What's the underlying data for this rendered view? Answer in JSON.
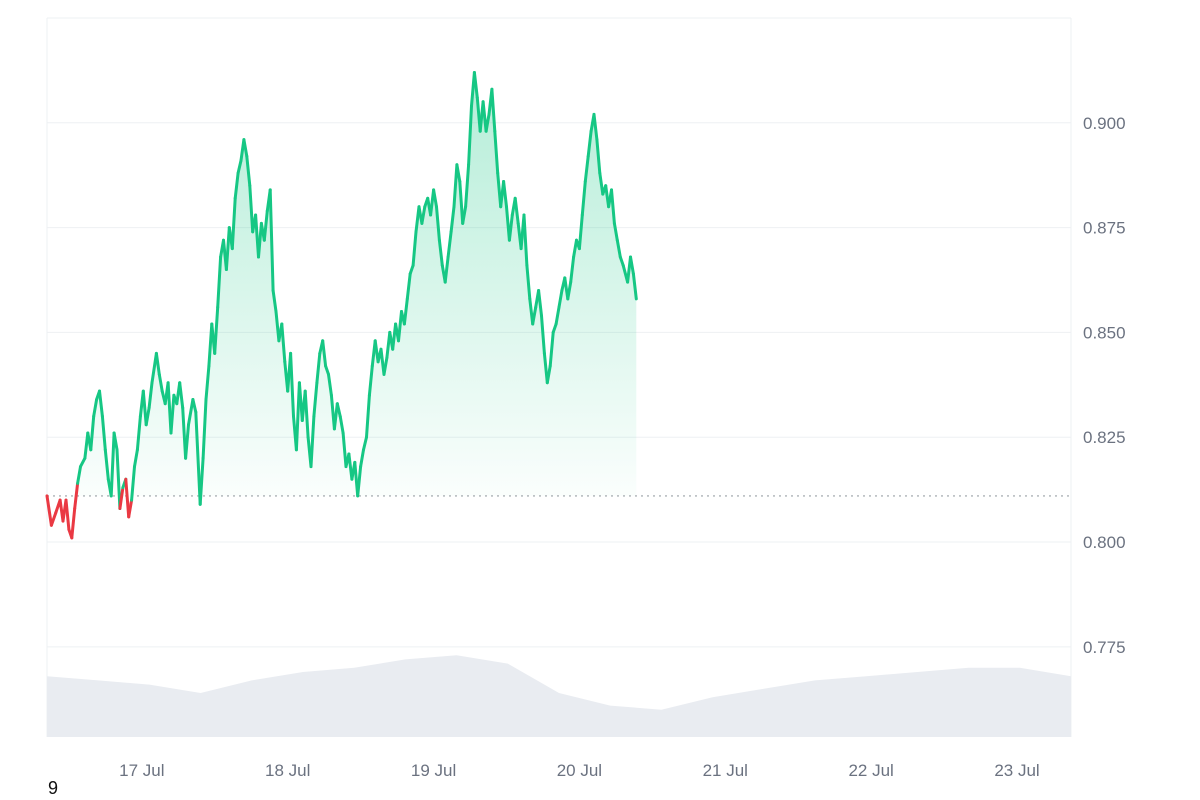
{
  "corner_label": "9",
  "colors": {
    "up": "#16c784",
    "down": "#ea3943",
    "grid": "#eef0f3",
    "volume": "#e9ecf1",
    "baseline": "#9aa0a6"
  },
  "chart_data": {
    "type": "area",
    "title": "",
    "xlabel": "",
    "ylabel": "",
    "ylim": [
      0.7535,
      0.925
    ],
    "y_ticks": [
      "0.775",
      "0.800",
      "0.825",
      "0.850",
      "0.875",
      "0.900"
    ],
    "x_ticks": [
      "17 Jul",
      "18 Jul",
      "19 Jul",
      "20 Jul",
      "21 Jul",
      "22 Jul",
      "23 Jul"
    ],
    "x_range_days": [
      16.35,
      23.37
    ],
    "baseline": 0.811,
    "series": [
      {
        "values": [
          [
            16.35,
            0.811
          ],
          [
            16.38,
            0.804
          ],
          [
            16.41,
            0.807
          ],
          [
            16.44,
            0.81
          ],
          [
            16.46,
            0.805
          ],
          [
            16.48,
            0.81
          ],
          [
            16.5,
            0.803
          ],
          [
            16.52,
            0.801
          ],
          [
            16.54,
            0.808
          ],
          [
            16.56,
            0.814
          ],
          [
            16.58,
            0.818
          ],
          [
            16.61,
            0.82
          ],
          [
            16.63,
            0.826
          ],
          [
            16.65,
            0.822
          ],
          [
            16.67,
            0.83
          ],
          [
            16.69,
            0.834
          ],
          [
            16.71,
            0.836
          ],
          [
            16.73,
            0.83
          ],
          [
            16.75,
            0.822
          ],
          [
            16.77,
            0.815
          ],
          [
            16.79,
            0.811
          ],
          [
            16.81,
            0.826
          ],
          [
            16.83,
            0.822
          ],
          [
            16.85,
            0.808
          ],
          [
            16.87,
            0.813
          ],
          [
            16.89,
            0.815
          ],
          [
            16.91,
            0.806
          ],
          [
            16.93,
            0.81
          ],
          [
            16.95,
            0.818
          ],
          [
            16.97,
            0.822
          ],
          [
            16.99,
            0.83
          ],
          [
            17.01,
            0.836
          ],
          [
            17.03,
            0.828
          ],
          [
            17.05,
            0.832
          ],
          [
            17.07,
            0.838
          ],
          [
            17.1,
            0.845
          ],
          [
            17.12,
            0.84
          ],
          [
            17.14,
            0.836
          ],
          [
            17.16,
            0.833
          ],
          [
            17.18,
            0.838
          ],
          [
            17.2,
            0.826
          ],
          [
            17.22,
            0.835
          ],
          [
            17.24,
            0.833
          ],
          [
            17.26,
            0.838
          ],
          [
            17.28,
            0.832
          ],
          [
            17.3,
            0.82
          ],
          [
            17.32,
            0.828
          ],
          [
            17.35,
            0.834
          ],
          [
            17.37,
            0.831
          ],
          [
            17.4,
            0.809
          ],
          [
            17.42,
            0.82
          ],
          [
            17.44,
            0.834
          ],
          [
            17.46,
            0.842
          ],
          [
            17.48,
            0.852
          ],
          [
            17.5,
            0.845
          ],
          [
            17.52,
            0.856
          ],
          [
            17.54,
            0.868
          ],
          [
            17.56,
            0.872
          ],
          [
            17.58,
            0.865
          ],
          [
            17.6,
            0.875
          ],
          [
            17.62,
            0.87
          ],
          [
            17.64,
            0.882
          ],
          [
            17.66,
            0.888
          ],
          [
            17.68,
            0.891
          ],
          [
            17.7,
            0.896
          ],
          [
            17.72,
            0.892
          ],
          [
            17.74,
            0.885
          ],
          [
            17.76,
            0.874
          ],
          [
            17.78,
            0.878
          ],
          [
            17.8,
            0.868
          ],
          [
            17.82,
            0.876
          ],
          [
            17.84,
            0.872
          ],
          [
            17.86,
            0.879
          ],
          [
            17.88,
            0.884
          ],
          [
            17.9,
            0.86
          ],
          [
            17.92,
            0.855
          ],
          [
            17.94,
            0.848
          ],
          [
            17.96,
            0.852
          ],
          [
            17.98,
            0.843
          ],
          [
            18.0,
            0.836
          ],
          [
            18.02,
            0.845
          ],
          [
            18.04,
            0.83
          ],
          [
            18.06,
            0.822
          ],
          [
            18.08,
            0.838
          ],
          [
            18.1,
            0.829
          ],
          [
            18.12,
            0.836
          ],
          [
            18.14,
            0.825
          ],
          [
            18.16,
            0.818
          ],
          [
            18.18,
            0.83
          ],
          [
            18.2,
            0.838
          ],
          [
            18.22,
            0.845
          ],
          [
            18.24,
            0.848
          ],
          [
            18.26,
            0.842
          ],
          [
            18.28,
            0.84
          ],
          [
            18.3,
            0.835
          ],
          [
            18.32,
            0.827
          ],
          [
            18.34,
            0.833
          ],
          [
            18.36,
            0.83
          ],
          [
            18.38,
            0.826
          ],
          [
            18.4,
            0.818
          ],
          [
            18.42,
            0.821
          ],
          [
            18.44,
            0.815
          ],
          [
            18.46,
            0.819
          ],
          [
            18.48,
            0.811
          ],
          [
            18.5,
            0.818
          ],
          [
            18.52,
            0.822
          ],
          [
            18.54,
            0.825
          ],
          [
            18.56,
            0.835
          ],
          [
            18.58,
            0.842
          ],
          [
            18.6,
            0.848
          ],
          [
            18.62,
            0.843
          ],
          [
            18.64,
            0.846
          ],
          [
            18.66,
            0.84
          ],
          [
            18.68,
            0.844
          ],
          [
            18.7,
            0.85
          ],
          [
            18.72,
            0.846
          ],
          [
            18.74,
            0.852
          ],
          [
            18.76,
            0.848
          ],
          [
            18.78,
            0.855
          ],
          [
            18.8,
            0.852
          ],
          [
            18.82,
            0.858
          ],
          [
            18.84,
            0.864
          ],
          [
            18.86,
            0.866
          ],
          [
            18.88,
            0.874
          ],
          [
            18.9,
            0.88
          ],
          [
            18.92,
            0.876
          ],
          [
            18.94,
            0.88
          ],
          [
            18.96,
            0.882
          ],
          [
            18.98,
            0.878
          ],
          [
            19.0,
            0.884
          ],
          [
            19.02,
            0.88
          ],
          [
            19.04,
            0.872
          ],
          [
            19.06,
            0.866
          ],
          [
            19.08,
            0.862
          ],
          [
            19.1,
            0.868
          ],
          [
            19.12,
            0.874
          ],
          [
            19.14,
            0.88
          ],
          [
            19.16,
            0.89
          ],
          [
            19.18,
            0.886
          ],
          [
            19.2,
            0.876
          ],
          [
            19.22,
            0.88
          ],
          [
            19.24,
            0.89
          ],
          [
            19.26,
            0.904
          ],
          [
            19.28,
            0.912
          ],
          [
            19.3,
            0.906
          ],
          [
            19.32,
            0.898
          ],
          [
            19.34,
            0.905
          ],
          [
            19.36,
            0.898
          ],
          [
            19.38,
            0.902
          ],
          [
            19.4,
            0.908
          ],
          [
            19.42,
            0.898
          ],
          [
            19.44,
            0.888
          ],
          [
            19.46,
            0.88
          ],
          [
            19.48,
            0.886
          ],
          [
            19.5,
            0.88
          ],
          [
            19.52,
            0.872
          ],
          [
            19.54,
            0.878
          ],
          [
            19.56,
            0.882
          ],
          [
            19.58,
            0.876
          ],
          [
            19.6,
            0.87
          ],
          [
            19.62,
            0.878
          ],
          [
            19.64,
            0.866
          ],
          [
            19.66,
            0.858
          ],
          [
            19.68,
            0.852
          ],
          [
            19.7,
            0.856
          ],
          [
            19.72,
            0.86
          ],
          [
            19.74,
            0.854
          ],
          [
            19.76,
            0.845
          ],
          [
            19.78,
            0.838
          ],
          [
            19.8,
            0.842
          ],
          [
            19.82,
            0.85
          ],
          [
            19.84,
            0.852
          ],
          [
            19.86,
            0.856
          ],
          [
            19.88,
            0.86
          ],
          [
            19.9,
            0.863
          ],
          [
            19.92,
            0.858
          ],
          [
            19.94,
            0.862
          ],
          [
            19.96,
            0.868
          ],
          [
            19.98,
            0.872
          ],
          [
            20.0,
            0.87
          ],
          [
            20.02,
            0.878
          ],
          [
            20.04,
            0.886
          ],
          [
            20.06,
            0.892
          ],
          [
            20.08,
            0.898
          ],
          [
            20.1,
            0.902
          ],
          [
            20.12,
            0.896
          ],
          [
            20.14,
            0.888
          ],
          [
            20.16,
            0.883
          ],
          [
            20.18,
            0.885
          ],
          [
            20.2,
            0.88
          ],
          [
            20.22,
            0.884
          ],
          [
            20.24,
            0.876
          ],
          [
            20.26,
            0.872
          ],
          [
            20.28,
            0.868
          ],
          [
            20.3,
            0.866
          ],
          [
            20.33,
            0.862
          ],
          [
            20.35,
            0.868
          ],
          [
            20.37,
            0.864
          ],
          [
            20.39,
            0.858
          ]
        ]
      }
    ]
  }
}
